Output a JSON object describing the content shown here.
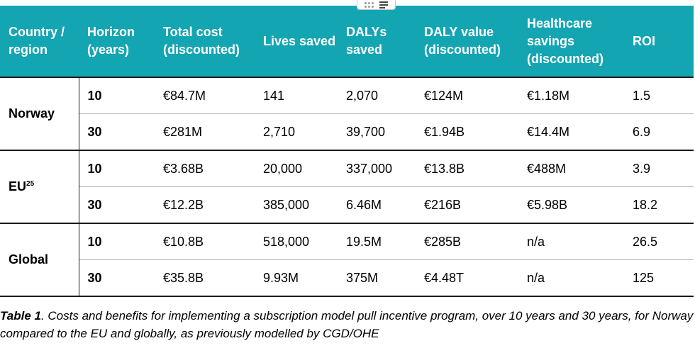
{
  "columns": [
    "Country / region",
    "Horizon (years)",
    "Total cost (discounted)",
    "Lives saved",
    "DALYs saved",
    "DALY value (discounted)",
    "Healthcare savings (discounted)",
    "ROI"
  ],
  "groups": [
    {
      "country": "Norway",
      "footnote": "",
      "rows": [
        {
          "horizon": "10",
          "total_cost": "€84.7M",
          "lives_saved": "141",
          "dalys_saved": "2,070",
          "daly_value": "€124M",
          "healthcare_savings": "€1.18M",
          "roi": "1.5"
        },
        {
          "horizon": "30",
          "total_cost": "€281M",
          "lives_saved": "2,710",
          "dalys_saved": "39,700",
          "daly_value": "€1.94B",
          "healthcare_savings": "€14.4M",
          "roi": "6.9"
        }
      ]
    },
    {
      "country": "EU",
      "footnote": "25",
      "rows": [
        {
          "horizon": "10",
          "total_cost": "€3.68B",
          "lives_saved": "20,000",
          "dalys_saved": "337,000",
          "daly_value": "€13.8B",
          "healthcare_savings": "€488M",
          "roi": "3.9"
        },
        {
          "horizon": "30",
          "total_cost": "€12.2B",
          "lives_saved": "385,000",
          "dalys_saved": "6.46M",
          "daly_value": "€216B",
          "healthcare_savings": "€5.98B",
          "roi": "18.2"
        }
      ]
    },
    {
      "country": "Global",
      "footnote": "",
      "rows": [
        {
          "horizon": "10",
          "total_cost": "€10.8B",
          "lives_saved": "518,000",
          "dalys_saved": "19.5M",
          "daly_value": "€285B",
          "healthcare_savings": "n/a",
          "roi": "26.5"
        },
        {
          "horizon": "30",
          "total_cost": "€35.8B",
          "lives_saved": "9.93M",
          "dalys_saved": "375M",
          "daly_value": "€4.48T",
          "healthcare_savings": "n/a",
          "roi": "125"
        }
      ]
    }
  ],
  "caption": {
    "label": "Table 1",
    "text": ". Costs and benefits for implementing a subscription model pull incentive program, over 10 years and 30 years, for Norway compared to the EU and globally, as previously modelled by CGD/OHE"
  },
  "icons": {
    "drag_handle": "drag-dots-icon",
    "menu": "lines-menu-icon"
  },
  "colors": {
    "header_background": "#14a5b3",
    "header_text": "#ffffff"
  }
}
